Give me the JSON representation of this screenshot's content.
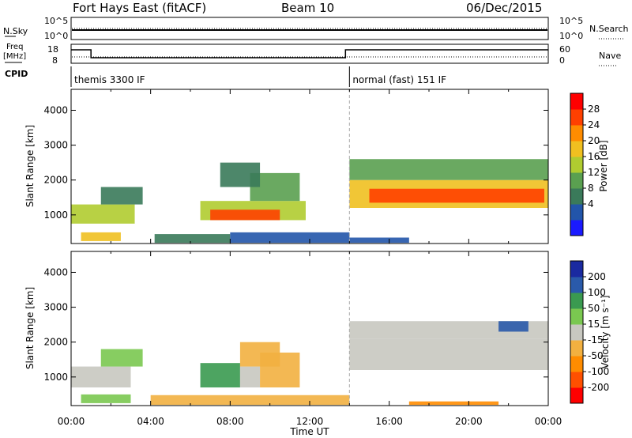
{
  "header": {
    "station": "Fort Hays East (fitACF)",
    "beam": "Beam 10",
    "date": "06/Dec/2015"
  },
  "top_panels": {
    "nsky_label": "N.Sky",
    "nsearch_label": "N.Search",
    "nsky_ticks": [
      "10^5",
      "10^0"
    ],
    "freq_label": "Freq",
    "freq_unit": "[MHz]",
    "freq_ticks": [
      "18",
      "8"
    ],
    "nave_label": "Nave",
    "nave_ticks": [
      "60",
      "0"
    ],
    "cpid_label": "CPID",
    "cpid_modes": [
      {
        "label": "themis 3300 IF",
        "start_h": 0,
        "end_h": 14
      },
      {
        "label": "normal (fast) 151 IF",
        "start_h": 14,
        "end_h": 24
      }
    ],
    "freq_steps": [
      {
        "start_h": 0,
        "end_h": 1,
        "level": "high"
      },
      {
        "start_h": 1,
        "end_h": 13.8,
        "level": "low"
      },
      {
        "start_h": 13.8,
        "end_h": 24,
        "level": "high"
      }
    ]
  },
  "colors": {
    "power": [
      "#1a1aff",
      "#2255aa",
      "#3a7a5a",
      "#5aa050",
      "#b0cc30",
      "#f0c020",
      "#ff8c00",
      "#ff4000",
      "#ff0000"
    ],
    "velocity": [
      "#ff0000",
      "#ff5000",
      "#ff8c00",
      "#f2b040",
      "#c8c8c0",
      "#7ac850",
      "#3a9a50",
      "#2a5aaa",
      "#1a2aa0"
    ]
  },
  "chart_data": [
    {
      "type": "heatmap",
      "name": "Power",
      "xlabel": "",
      "ylabel": "Slant Range [km]",
      "xlim": [
        0,
        24
      ],
      "ylim": [
        180,
        4600
      ],
      "yticks": [
        1000,
        2000,
        3000,
        4000
      ],
      "colorbar_label": "Power [dB]",
      "colorbar_ticks": [
        "28",
        "24",
        "20",
        "16",
        "12",
        "8",
        "4"
      ],
      "regions": [
        {
          "t0": 0.0,
          "t1": 3.2,
          "r0": 750,
          "r1": 1300,
          "level": 4
        },
        {
          "t0": 1.5,
          "t1": 3.6,
          "r0": 1300,
          "r1": 1800,
          "level": 2
        },
        {
          "t0": 0.5,
          "t1": 2.5,
          "r0": 250,
          "r1": 500,
          "level": 5
        },
        {
          "t0": 4.2,
          "t1": 8.0,
          "r0": 200,
          "r1": 450,
          "level": 2
        },
        {
          "t0": 6.5,
          "t1": 11.8,
          "r0": 850,
          "r1": 1400,
          "level": 4
        },
        {
          "t0": 7.0,
          "t1": 10.5,
          "r0": 850,
          "r1": 1150,
          "level": 7
        },
        {
          "t0": 9.0,
          "t1": 11.5,
          "r0": 1400,
          "r1": 2200,
          "level": 3
        },
        {
          "t0": 7.5,
          "t1": 9.5,
          "r0": 1800,
          "r1": 2500,
          "level": 2
        },
        {
          "t0": 8.0,
          "t1": 14.0,
          "r0": 200,
          "r1": 500,
          "level": 1
        },
        {
          "t0": 14.0,
          "t1": 24.0,
          "r0": 1200,
          "r1": 2000,
          "level": 5
        },
        {
          "t0": 15.0,
          "t1": 23.8,
          "r0": 1350,
          "r1": 1750,
          "level": 7
        },
        {
          "t0": 14.0,
          "t1": 24.0,
          "r0": 2000,
          "r1": 2600,
          "level": 3
        },
        {
          "t0": 14.0,
          "t1": 17.0,
          "r0": 200,
          "r1": 350,
          "level": 1
        }
      ]
    },
    {
      "type": "heatmap",
      "name": "Velocity",
      "xlabel": "Time UT",
      "ylabel": "Slant Range [km]",
      "xlim": [
        0,
        24
      ],
      "ylim": [
        180,
        4600
      ],
      "yticks": [
        1000,
        2000,
        3000,
        4000
      ],
      "xticks": [
        "00:00",
        "04:00",
        "08:00",
        "12:00",
        "16:00",
        "20:00",
        "00:00"
      ],
      "colorbar_label": "Velocity [m s⁻¹]",
      "colorbar_ticks": [
        "200",
        "100",
        "50",
        "15",
        "-15",
        "-50",
        "-100",
        "-200"
      ],
      "regions": [
        {
          "t0": 0.0,
          "t1": 3.0,
          "r0": 700,
          "r1": 1300,
          "level": 4
        },
        {
          "t0": 1.5,
          "t1": 3.6,
          "r0": 1300,
          "r1": 1800,
          "level": 5
        },
        {
          "t0": 0.5,
          "t1": 3.0,
          "r0": 250,
          "r1": 500,
          "level": 5
        },
        {
          "t0": 6.5,
          "t1": 8.5,
          "r0": 700,
          "r1": 1400,
          "level": 6
        },
        {
          "t0": 8.5,
          "t1": 9.5,
          "r0": 700,
          "r1": 1300,
          "level": 4
        },
        {
          "t0": 9.5,
          "t1": 11.5,
          "r0": 700,
          "r1": 1700,
          "level": 3
        },
        {
          "t0": 8.5,
          "t1": 10.5,
          "r0": 1300,
          "r1": 2000,
          "level": 3
        },
        {
          "t0": 4.0,
          "t1": 14.0,
          "r0": 200,
          "r1": 480,
          "level": 3
        },
        {
          "t0": 14.0,
          "t1": 24.0,
          "r0": 1200,
          "r1": 2100,
          "level": 4
        },
        {
          "t0": 14.0,
          "t1": 24.0,
          "r0": 2100,
          "r1": 2600,
          "level": 4
        },
        {
          "t0": 17.0,
          "t1": 21.5,
          "r0": 200,
          "r1": 300,
          "level": 2
        },
        {
          "t0": 21.5,
          "t1": 23.0,
          "r0": 2300,
          "r1": 2600,
          "level": 7
        }
      ]
    }
  ]
}
